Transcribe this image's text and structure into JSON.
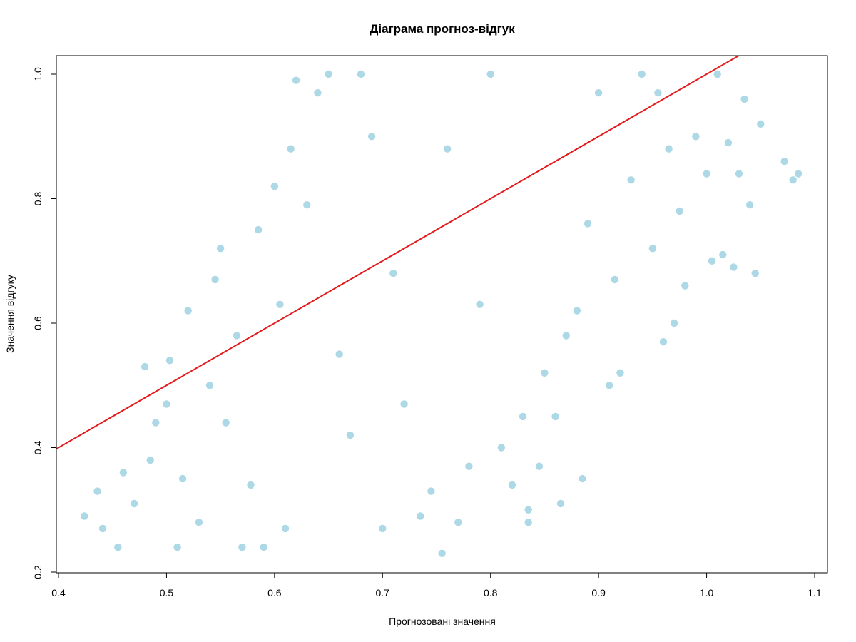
{
  "chart_data": {
    "type": "scatter",
    "title": "Діаграма прогноз-відгук",
    "xlabel": "Прогнозовані значення",
    "ylabel": "Значення відгуку",
    "xlim": [
      0.4,
      1.1
    ],
    "ylim": [
      0.2,
      1.0
    ],
    "x_ticks": [
      "0.4",
      "0.5",
      "0.6",
      "0.7",
      "0.8",
      "0.9",
      "1.0",
      "1.1"
    ],
    "y_ticks": [
      "0.2",
      "0.4",
      "0.6",
      "0.8",
      "1.0"
    ],
    "grid": false,
    "legend": "none",
    "colors": {
      "points": "#add8e6",
      "reference_line": "#e31a1c",
      "axes": "#000000"
    },
    "reference_line": {
      "slope": 1,
      "intercept": 0
    },
    "series": [
      {
        "points": [
          [
            0.424,
            0.29
          ],
          [
            0.436,
            0.33
          ],
          [
            0.441,
            0.27
          ],
          [
            0.455,
            0.24
          ],
          [
            0.46,
            0.36
          ],
          [
            0.47,
            0.31
          ],
          [
            0.48,
            0.53
          ],
          [
            0.485,
            0.38
          ],
          [
            0.49,
            0.44
          ],
          [
            0.5,
            0.47
          ],
          [
            0.503,
            0.54
          ],
          [
            0.51,
            0.24
          ],
          [
            0.515,
            0.35
          ],
          [
            0.52,
            0.62
          ],
          [
            0.53,
            0.28
          ],
          [
            0.54,
            0.5
          ],
          [
            0.545,
            0.67
          ],
          [
            0.55,
            0.72
          ],
          [
            0.555,
            0.44
          ],
          [
            0.565,
            0.58
          ],
          [
            0.57,
            0.24
          ],
          [
            0.578,
            0.34
          ],
          [
            0.585,
            0.75
          ],
          [
            0.59,
            0.24
          ],
          [
            0.6,
            0.82
          ],
          [
            0.605,
            0.63
          ],
          [
            0.61,
            0.27
          ],
          [
            0.615,
            0.88
          ],
          [
            0.62,
            0.99
          ],
          [
            0.63,
            0.79
          ],
          [
            0.64,
            0.97
          ],
          [
            0.65,
            1.0
          ],
          [
            0.66,
            0.55
          ],
          [
            0.67,
            0.42
          ],
          [
            0.68,
            1.0
          ],
          [
            0.69,
            0.9
          ],
          [
            0.7,
            0.27
          ],
          [
            0.71,
            0.68
          ],
          [
            0.72,
            0.47
          ],
          [
            0.735,
            0.29
          ],
          [
            0.745,
            0.33
          ],
          [
            0.755,
            0.23
          ],
          [
            0.76,
            0.88
          ],
          [
            0.77,
            0.28
          ],
          [
            0.78,
            0.37
          ],
          [
            0.79,
            0.63
          ],
          [
            0.8,
            1.0
          ],
          [
            0.81,
            0.4
          ],
          [
            0.82,
            0.34
          ],
          [
            0.83,
            0.45
          ],
          [
            0.835,
            0.3
          ],
          [
            0.835,
            0.28
          ],
          [
            0.845,
            0.37
          ],
          [
            0.85,
            0.52
          ],
          [
            0.86,
            0.45
          ],
          [
            0.865,
            0.31
          ],
          [
            0.87,
            0.58
          ],
          [
            0.88,
            0.62
          ],
          [
            0.885,
            0.35
          ],
          [
            0.89,
            0.76
          ],
          [
            0.9,
            0.97
          ],
          [
            0.91,
            0.5
          ],
          [
            0.915,
            0.67
          ],
          [
            0.92,
            0.52
          ],
          [
            0.93,
            0.83
          ],
          [
            0.94,
            1.0
          ],
          [
            0.95,
            0.72
          ],
          [
            0.955,
            0.97
          ],
          [
            0.96,
            0.57
          ],
          [
            0.965,
            0.88
          ],
          [
            0.97,
            0.6
          ],
          [
            0.975,
            0.78
          ],
          [
            0.98,
            0.66
          ],
          [
            0.99,
            0.9
          ],
          [
            1.0,
            0.84
          ],
          [
            1.005,
            0.7
          ],
          [
            1.01,
            1.0
          ],
          [
            1.015,
            0.71
          ],
          [
            1.02,
            0.89
          ],
          [
            1.025,
            0.69
          ],
          [
            1.03,
            0.84
          ],
          [
            1.035,
            0.96
          ],
          [
            1.04,
            0.79
          ],
          [
            1.045,
            0.68
          ],
          [
            1.05,
            0.92
          ],
          [
            1.072,
            0.86
          ],
          [
            1.08,
            0.83
          ],
          [
            1.085,
            0.84
          ]
        ]
      }
    ]
  }
}
